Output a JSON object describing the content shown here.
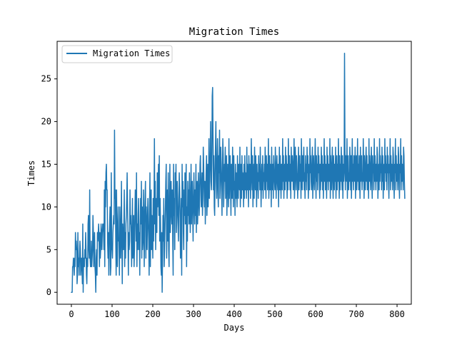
{
  "chart_data": {
    "type": "line",
    "title": "Migration Times",
    "xlabel": "Days",
    "ylabel": "Times",
    "xlim": [
      -35,
      835
    ],
    "ylim": [
      -1.4,
      29.4
    ],
    "xticks": [
      0,
      100,
      200,
      300,
      400,
      500,
      600,
      700,
      800
    ],
    "yticks": [
      0,
      5,
      10,
      15,
      20,
      25
    ],
    "grid": false,
    "legend": {
      "placement": "top-left",
      "entries": [
        "Migration Times"
      ]
    },
    "series": [
      {
        "name": "Migration Times",
        "color": "#1f77b4",
        "x_start": 0,
        "x_step": 1,
        "values": [
          0,
          0,
          0,
          3,
          3,
          4,
          3,
          2,
          4,
          3,
          7,
          5,
          6,
          5,
          1,
          2,
          7,
          3,
          4,
          2,
          4,
          6,
          5,
          2,
          3,
          4,
          3,
          1,
          8,
          0,
          4,
          3,
          3,
          5,
          4,
          7,
          5,
          2,
          1,
          4,
          3,
          8,
          9,
          5,
          4,
          12,
          4,
          3,
          3,
          6,
          3,
          4,
          5,
          9,
          7,
          3,
          5,
          7,
          3,
          2,
          0,
          4,
          5,
          2,
          7,
          6,
          7,
          8,
          6,
          3,
          7,
          4,
          5,
          8,
          7,
          5,
          7,
          8,
          8,
          7,
          5,
          12,
          3,
          13,
          10,
          14,
          15,
          12,
          12,
          6,
          4,
          7,
          2,
          6,
          8,
          10,
          2,
          3,
          14,
          5,
          5,
          4,
          7,
          8,
          9,
          8,
          19,
          11,
          12,
          6,
          2,
          12,
          5,
          3,
          8,
          10,
          6,
          6,
          2,
          10,
          8,
          4,
          6,
          13,
          7,
          1,
          8,
          6,
          5,
          8,
          12,
          3,
          7,
          4,
          8,
          9,
          11,
          14,
          10,
          7,
          2,
          7,
          5,
          6,
          12,
          8,
          9,
          7,
          3,
          6,
          11,
          4,
          7,
          9,
          3,
          5,
          9,
          12,
          10,
          6,
          14,
          3,
          8,
          5,
          9,
          11,
          5,
          7,
          2,
          8,
          11,
          8,
          13,
          4,
          10,
          5,
          6,
          12,
          8,
          3,
          9,
          11,
          13,
          4,
          10,
          7,
          5,
          9,
          11,
          8,
          6,
          2,
          10,
          14,
          3,
          8,
          12,
          5,
          9,
          7,
          4,
          11,
          6,
          10,
          18,
          8,
          13,
          5,
          9,
          11,
          7,
          14,
          10,
          12,
          15,
          9,
          16,
          6,
          11,
          8,
          3,
          2,
          7,
          0,
          4,
          9,
          6,
          11,
          3,
          5,
          8,
          10,
          13,
          15,
          4,
          8,
          12,
          6,
          14,
          5,
          3,
          11,
          15,
          7,
          9,
          13,
          10,
          8,
          12,
          6,
          2,
          15,
          9,
          11,
          5,
          14,
          12,
          15,
          7,
          9,
          13,
          11,
          8,
          6,
          10,
          14,
          12,
          9,
          4,
          8,
          11,
          2,
          15,
          10,
          13,
          7,
          5,
          12,
          9,
          14,
          8,
          11,
          15,
          3,
          10,
          6,
          13,
          9,
          12,
          8,
          14,
          11,
          7,
          10,
          15,
          8,
          12,
          13,
          9,
          6,
          11,
          14,
          10,
          8,
          12,
          9,
          15,
          7,
          11,
          13,
          8,
          10,
          14,
          12,
          9,
          11,
          15,
          16,
          13,
          10,
          12,
          14,
          9,
          11,
          17,
          15,
          12,
          10,
          13,
          8,
          11,
          14,
          16,
          9,
          12,
          15,
          10,
          13,
          18,
          11,
          14,
          16,
          20,
          13,
          12,
          15,
          23,
          24,
          18,
          12,
          16,
          10,
          9,
          14,
          17,
          20,
          13,
          11,
          15,
          18,
          12,
          10,
          16,
          14,
          19,
          11,
          13,
          17,
          15,
          12,
          9,
          14,
          18,
          16,
          10,
          12,
          15,
          13,
          17,
          11,
          14,
          16,
          9,
          12,
          15,
          13,
          10,
          18,
          11,
          14,
          16,
          12,
          9,
          15,
          13,
          11,
          17,
          14,
          10,
          16,
          12,
          13,
          9,
          15,
          11,
          14,
          12,
          10,
          16,
          13,
          11,
          15,
          14,
          12,
          17,
          10,
          13,
          15,
          11,
          16,
          12,
          14,
          13,
          10,
          15,
          11,
          16,
          12,
          14,
          13,
          11,
          17,
          12,
          15,
          13,
          10,
          16,
          14,
          12,
          15,
          11,
          13,
          18,
          14,
          12,
          16,
          10,
          13,
          15,
          11,
          17,
          14,
          12,
          16,
          13,
          10,
          15,
          12,
          14,
          11,
          16,
          13,
          15,
          12,
          17,
          14,
          10,
          13,
          15,
          12,
          16,
          11,
          14,
          13,
          15,
          12,
          17,
          14,
          11,
          16,
          13,
          15,
          12,
          14,
          18,
          11,
          13,
          16,
          12,
          15,
          14,
          10,
          17,
          13,
          12,
          15,
          11,
          16,
          14,
          13,
          12,
          17,
          15,
          11,
          14,
          16,
          13,
          12,
          15,
          10,
          14,
          17,
          12,
          16,
          13,
          11,
          15,
          14,
          12,
          18,
          13,
          16,
          11,
          14,
          15,
          12,
          17,
          13,
          16,
          14,
          11,
          15,
          12,
          18,
          14,
          13,
          16,
          12,
          15,
          11,
          17,
          14,
          13,
          16,
          15,
          12,
          14,
          18,
          11,
          13,
          17,
          15,
          12,
          16,
          14,
          13,
          11,
          15,
          17,
          12,
          14,
          16,
          13,
          15,
          11,
          18,
          14,
          12,
          16,
          13,
          15,
          17,
          12,
          14,
          11,
          16,
          13,
          15,
          12,
          17,
          14,
          16,
          11,
          13,
          15,
          12,
          18,
          14,
          16,
          13,
          12,
          15,
          17,
          11,
          14,
          16,
          13,
          12,
          15,
          18,
          14,
          11,
          16,
          13,
          15,
          12,
          17,
          14,
          16,
          13,
          11,
          15,
          12,
          14,
          17,
          13,
          16,
          12,
          15,
          11,
          14,
          18,
          13,
          16,
          12,
          15,
          14,
          11,
          17,
          13,
          16,
          12,
          15,
          14,
          13,
          18,
          11,
          16,
          14,
          12,
          15,
          17,
          13,
          11,
          16,
          14,
          12,
          15,
          13,
          17,
          11,
          14,
          16,
          12,
          15,
          13,
          18,
          14,
          11,
          16,
          12,
          15,
          13,
          17,
          14,
          12,
          16,
          11,
          15,
          13,
          14,
          28,
          17,
          12,
          16,
          14,
          13,
          18,
          11,
          15,
          16,
          12,
          14,
          13,
          17,
          15,
          12,
          16,
          11,
          14,
          18,
          13,
          15,
          12,
          16,
          14,
          13,
          17,
          11,
          15,
          16,
          12,
          14,
          18,
          13,
          15,
          12,
          16,
          14,
          11,
          17,
          13,
          15,
          16,
          12,
          14,
          13,
          18,
          15,
          11,
          16,
          14,
          12,
          15,
          17,
          13,
          16,
          12,
          14,
          15,
          11,
          18,
          13,
          16,
          14,
          12,
          15,
          17,
          13,
          11,
          16,
          14,
          15,
          12,
          18,
          13,
          16,
          14,
          12,
          15,
          13,
          17,
          16,
          11,
          14,
          15,
          12,
          18,
          13,
          16,
          14,
          15,
          12,
          17,
          13,
          16,
          11,
          14,
          15,
          12,
          18,
          14,
          16,
          13,
          15,
          12,
          17,
          14,
          16,
          13,
          11,
          15,
          14,
          18,
          12,
          16,
          13,
          15,
          14,
          12,
          17,
          16,
          13,
          11,
          15,
          14,
          18,
          12,
          16,
          13,
          15,
          14,
          12,
          17,
          16,
          13,
          11,
          15,
          14,
          18,
          12,
          16,
          13,
          15,
          14,
          12,
          17,
          16,
          13,
          11
        ]
      }
    ]
  }
}
